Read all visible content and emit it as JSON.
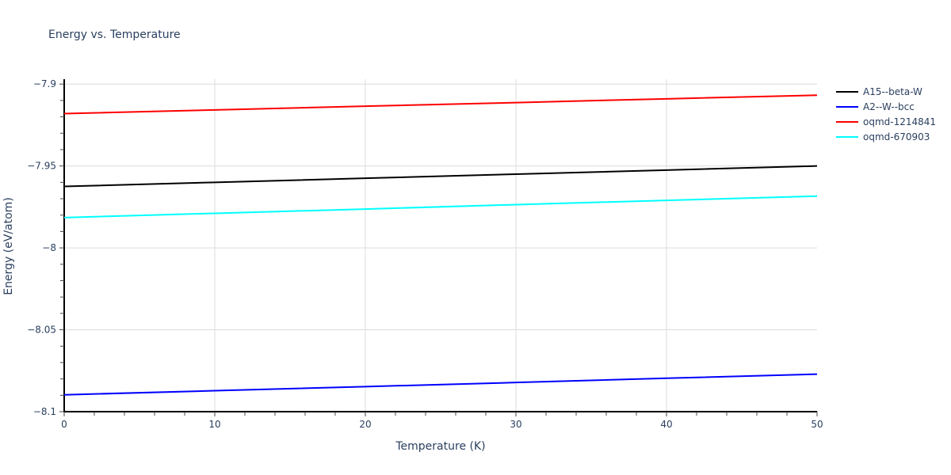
{
  "title": "Energy vs. Temperature",
  "xaxis": {
    "title": "Temperature (K)",
    "ticks": [
      "0",
      "10",
      "20",
      "30",
      "40",
      "50"
    ]
  },
  "yaxis": {
    "title": "Energy (eV/atom)",
    "ticks": [
      "−7.9",
      "−7.95",
      "−8",
      "−8.05",
      "−8.1"
    ]
  },
  "legend": [
    {
      "name": "A15--beta-W",
      "color": "#000000"
    },
    {
      "name": "A2--W--bcc",
      "color": "#0000ff"
    },
    {
      "name": "oqmd-1214841",
      "color": "#ff0000"
    },
    {
      "name": "oqmd-670903",
      "color": "#00ffff"
    }
  ],
  "chart_data": {
    "type": "line",
    "title": "Energy vs. Temperature",
    "xlabel": "Temperature (K)",
    "ylabel": "Energy (eV/atom)",
    "xlim": [
      0,
      50
    ],
    "ylim": [
      -8.1,
      -7.9
    ],
    "grid": true,
    "legend_position": "right",
    "x": [
      0,
      10,
      20,
      30,
      40,
      50
    ],
    "series": [
      {
        "name": "A15--beta-W",
        "color": "#000000",
        "values": [
          -7.9625,
          -7.96,
          -7.9575,
          -7.955,
          -7.9525,
          -7.95
        ]
      },
      {
        "name": "A2--W--bcc",
        "color": "#0000ff",
        "values": [
          -8.0897,
          -8.0872,
          -8.0847,
          -8.0822,
          -8.0796,
          -8.0771
        ]
      },
      {
        "name": "oqmd-1214841",
        "color": "#ff0000",
        "values": [
          -7.918,
          -7.9158,
          -7.9135,
          -7.9113,
          -7.909,
          -7.9068
        ]
      },
      {
        "name": "oqmd-670903",
        "color": "#00ffff",
        "values": [
          -7.9815,
          -7.9789,
          -7.9763,
          -7.9736,
          -7.971,
          -7.9684
        ]
      }
    ]
  }
}
